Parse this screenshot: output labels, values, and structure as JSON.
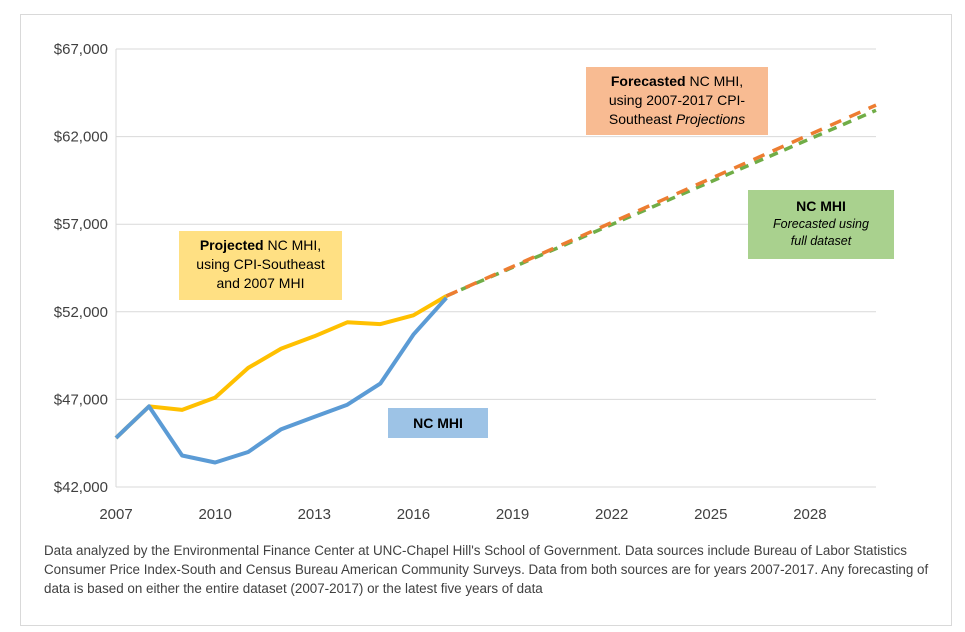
{
  "chart_data": {
    "type": "line",
    "xlim": [
      2007,
      2030
    ],
    "ylim": [
      42000,
      67000
    ],
    "x_ticks": [
      2007,
      2010,
      2013,
      2016,
      2019,
      2022,
      2025,
      2028
    ],
    "y_ticks": [
      42000,
      47000,
      52000,
      57000,
      62000,
      67000
    ],
    "y_tick_labels": [
      "$42,000",
      "$47,000",
      "$52,000",
      "$57,000",
      "$62,000",
      "$67,000"
    ],
    "grid": "horizontal",
    "series": [
      {
        "name": "Projected NC MHI, using CPI-Southeast and 2007 MHI",
        "color": "#ffc000",
        "style": "solid",
        "x": [
          2007,
          2008,
          2009,
          2010,
          2011,
          2012,
          2013,
          2014,
          2015,
          2016,
          2017
        ],
        "y": [
          44800,
          46600,
          46400,
          47100,
          48800,
          49900,
          50600,
          51400,
          51300,
          51800,
          52900
        ]
      },
      {
        "name": "NC MHI",
        "color": "#5b9bd5",
        "style": "solid",
        "x": [
          2007,
          2008,
          2009,
          2010,
          2011,
          2012,
          2013,
          2014,
          2015,
          2016,
          2017
        ],
        "y": [
          44800,
          46600,
          43800,
          43400,
          44000,
          45300,
          46000,
          46700,
          47900,
          50700,
          52800
        ]
      },
      {
        "name": "NC MHI Forecasted using full dataset",
        "color": "#70ad47",
        "style": "dashed",
        "x": [
          2017,
          2030
        ],
        "y": [
          52900,
          63500
        ]
      },
      {
        "name": "Forecasted NC MHI, using 2007-2017 CPI-Southeast Projections",
        "color": "#ed7d31",
        "style": "dashed",
        "x": [
          2017,
          2030
        ],
        "y": [
          52900,
          63800
        ]
      }
    ],
    "annotations": {
      "projected": {
        "bold": "Projected",
        "line1_rest": " NC MHI,",
        "line2": "using CPI-Southeast",
        "line3": "and 2007 MHI"
      },
      "forecasted": {
        "bold": "Forecasted",
        "line1_rest": " NC MHI,",
        "line2": "using 2007-2017 CPI-",
        "line3_plain": "Southeast ",
        "line3_italic": "Projections"
      },
      "nc_mhi": "NC MHI",
      "full_dataset": {
        "title": "NC MHI",
        "sub1": "Forecasted using",
        "sub2": "full dataset"
      }
    }
  },
  "footnote": "Data analyzed by the Environmental Finance Center at UNC-Chapel Hill's School of Government. Data sources include Bureau of Labor Statistics Consumer Price Index-South and Census Bureau American Community Surveys. Data from both sources are for years 2007-2017. Any forecasting of data is based on either the entire dataset (2007-2017) or the latest five years of data"
}
